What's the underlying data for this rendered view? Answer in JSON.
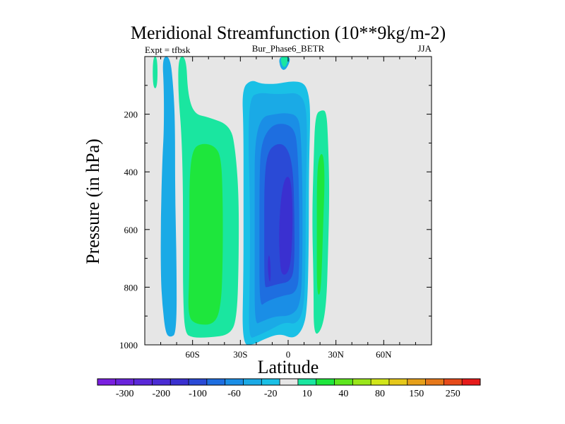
{
  "chart_data": {
    "type": "heatmap",
    "title": "Meridional Streamfunction (10**9kg/m-2)",
    "subtitle_left": "Expt = tfbsk",
    "subtitle_center": "Bur_Phase6_BETR",
    "subtitle_right": "JJA",
    "xlabel": "Latitude",
    "ylabel": "Pressure (in hPa)",
    "xlim": [
      -90,
      90
    ],
    "ylim": [
      1000,
      0
    ],
    "x_ticks": [
      {
        "value": -60,
        "label": "60S"
      },
      {
        "value": -30,
        "label": "30S"
      },
      {
        "value": 0,
        "label": "0"
      },
      {
        "value": 30,
        "label": "30N"
      },
      {
        "value": 60,
        "label": "60N"
      }
    ],
    "y_ticks": [
      {
        "value": 200,
        "label": "200"
      },
      {
        "value": 400,
        "label": "400"
      },
      {
        "value": 600,
        "label": "600"
      },
      {
        "value": 800,
        "label": "800"
      },
      {
        "value": 1000,
        "label": "1000"
      }
    ],
    "background_color": "#e6e6e6",
    "colorbar": {
      "colors": [
        "#7a1fe0",
        "#6a24dc",
        "#5a28d8",
        "#4a2cd4",
        "#3a30d0",
        "#2a4ad6",
        "#1e6ee0",
        "#1a8ee6",
        "#1aaae6",
        "#1ac0e6",
        "#e6e6e6",
        "#1ae6a0",
        "#1ee63c",
        "#5ee61e",
        "#9ae61a",
        "#d2e61a",
        "#e6c81a",
        "#e6a01a",
        "#e6781a",
        "#e64a1a",
        "#e61a1a"
      ],
      "label_positions": [
        1,
        3,
        5,
        7,
        9,
        11,
        13,
        15,
        17,
        19
      ],
      "labels": [
        "-300",
        "-200",
        "-100",
        "-60",
        "-20",
        "10",
        "40",
        "80",
        "150",
        "250"
      ]
    },
    "contours": [
      {
        "name": "sh-band-outer",
        "color": "#1aaae6",
        "points": [
          [
            -77,
            960
          ],
          [
            -79,
            860
          ],
          [
            -80,
            760
          ],
          [
            -80,
            560
          ],
          [
            -79,
            360
          ],
          [
            -78,
            260
          ],
          [
            -78,
            110
          ],
          [
            -79,
            0
          ],
          [
            -74,
            0
          ],
          [
            -72,
            110
          ],
          [
            -71,
            230
          ],
          [
            -71,
            480
          ],
          [
            -70,
            720
          ],
          [
            -70,
            960
          ],
          [
            -74,
            975
          ]
        ]
      },
      {
        "name": "sh-band-green",
        "color": "#1ae6a0",
        "points": [
          [
            -65,
            960
          ],
          [
            -66,
            820
          ],
          [
            -66,
            650
          ],
          [
            -66,
            450
          ],
          [
            -67,
            260
          ],
          [
            -69,
            130
          ],
          [
            -69,
            0
          ],
          [
            -64,
            0
          ],
          [
            -63,
            130
          ],
          [
            -59,
            200
          ],
          [
            -50,
            210
          ],
          [
            -36,
            240
          ],
          [
            -33,
            330
          ],
          [
            -31,
            480
          ],
          [
            -31,
            700
          ],
          [
            -32,
            900
          ],
          [
            -36,
            965
          ],
          [
            -50,
            975
          ],
          [
            -60,
            975
          ]
        ]
      },
      {
        "name": "sh-band-left-sliver",
        "color": "#1ae6a0",
        "points": [
          [
            -85,
            110
          ],
          [
            -85,
            0
          ],
          [
            -82,
            0
          ],
          [
            -82,
            110
          ]
        ]
      },
      {
        "name": "sh-band-core",
        "color": "#1ee63c",
        "points": [
          [
            -63,
            900
          ],
          [
            -62,
            760
          ],
          [
            -62,
            580
          ],
          [
            -62,
            420
          ],
          [
            -60,
            320
          ],
          [
            -54,
            300
          ],
          [
            -46,
            310
          ],
          [
            -42,
            350
          ],
          [
            -41,
            500
          ],
          [
            -41,
            700
          ],
          [
            -42,
            860
          ],
          [
            -46,
            930
          ],
          [
            -58,
            930
          ]
        ]
      },
      {
        "name": "cell-l1",
        "color": "#1ac0e6",
        "points": [
          [
            -29,
            1000
          ],
          [
            -28,
            750
          ],
          [
            -28,
            480
          ],
          [
            -28,
            250
          ],
          [
            -29,
            110
          ],
          [
            -23,
            80
          ],
          [
            -17,
            95
          ],
          [
            -7,
            95
          ],
          [
            2,
            85
          ],
          [
            10,
            90
          ],
          [
            13,
            130
          ],
          [
            14,
            200
          ],
          [
            13,
            400
          ],
          [
            13,
            650
          ],
          [
            12,
            880
          ],
          [
            9,
            950
          ],
          [
            3,
            980
          ],
          [
            -5,
            960
          ],
          [
            -15,
            980
          ],
          [
            -22,
            1000
          ]
        ]
      },
      {
        "name": "cell-l2",
        "color": "#1aaae6",
        "points": [
          [
            -25,
            980
          ],
          [
            -24,
            760
          ],
          [
            -24,
            500
          ],
          [
            -25,
            280
          ],
          [
            -24,
            140
          ],
          [
            -18,
            125
          ],
          [
            -10,
            130
          ],
          [
            -2,
            130
          ],
          [
            6,
            125
          ],
          [
            11,
            160
          ],
          [
            12,
            260
          ],
          [
            11,
            500
          ],
          [
            11,
            700
          ],
          [
            10,
            880
          ],
          [
            5,
            930
          ],
          [
            -2,
            920
          ],
          [
            -12,
            950
          ],
          [
            -20,
            970
          ]
        ]
      },
      {
        "name": "cell-l3",
        "color": "#1a8ee6",
        "points": [
          [
            -21,
            930
          ],
          [
            -21,
            720
          ],
          [
            -21,
            480
          ],
          [
            -21,
            300
          ],
          [
            -17,
            210
          ],
          [
            -9,
            200
          ],
          [
            -1,
            195
          ],
          [
            6,
            205
          ],
          [
            8,
            260
          ],
          [
            9,
            450
          ],
          [
            9,
            700
          ],
          [
            8,
            860
          ],
          [
            2,
            900
          ],
          [
            -8,
            900
          ],
          [
            -17,
            920
          ]
        ]
      },
      {
        "name": "cell-l4",
        "color": "#1e6ee0",
        "points": [
          [
            -18,
            870
          ],
          [
            -18,
            640
          ],
          [
            -18,
            420
          ],
          [
            -17,
            300
          ],
          [
            -11,
            240
          ],
          [
            -3,
            230
          ],
          [
            4,
            250
          ],
          [
            6,
            320
          ],
          [
            7,
            520
          ],
          [
            7,
            720
          ],
          [
            6,
            820
          ],
          [
            -4,
            830
          ],
          [
            -14,
            850
          ]
        ]
      },
      {
        "name": "cell-l5",
        "color": "#2a4ad6",
        "points": [
          [
            -15,
            800
          ],
          [
            -15,
            600
          ],
          [
            -15,
            430
          ],
          [
            -13,
            330
          ],
          [
            -7,
            300
          ],
          [
            -1,
            310
          ],
          [
            3,
            380
          ],
          [
            4,
            550
          ],
          [
            4,
            720
          ],
          [
            2,
            780
          ],
          [
            -7,
            790
          ],
          [
            -13,
            800
          ]
        ]
      },
      {
        "name": "cell-l6",
        "color": "#3a30d0",
        "points": [
          [
            -5,
            740
          ],
          [
            -6,
            600
          ],
          [
            -4,
            460
          ],
          [
            -1,
            410
          ],
          [
            2,
            430
          ],
          [
            3,
            560
          ],
          [
            2,
            700
          ],
          [
            0,
            750
          ],
          [
            -3,
            760
          ]
        ]
      },
      {
        "name": "cell-l6b",
        "color": "#3a30d0",
        "points": [
          [
            -12,
            780
          ],
          [
            -13,
            720
          ],
          [
            -12,
            680
          ],
          [
            -11,
            720
          ],
          [
            -11,
            780
          ]
        ]
      },
      {
        "name": "top-blob-outer",
        "color": "#1aaae6",
        "points": [
          [
            -6,
            0
          ],
          [
            -5,
            40
          ],
          [
            -2,
            50
          ],
          [
            1,
            20
          ],
          [
            1,
            0
          ]
        ]
      },
      {
        "name": "top-blob-green",
        "color": "#1ae6a0",
        "points": [
          [
            -5,
            0
          ],
          [
            -4,
            30
          ],
          [
            -2,
            40
          ],
          [
            0,
            15
          ],
          [
            0,
            0
          ]
        ]
      },
      {
        "name": "nh-band-green",
        "color": "#1ae6a0",
        "points": [
          [
            16,
            970
          ],
          [
            16,
            800
          ],
          [
            15,
            560
          ],
          [
            16,
            360
          ],
          [
            17,
            200
          ],
          [
            21,
            185
          ],
          [
            24,
            190
          ],
          [
            25,
            280
          ],
          [
            26,
            470
          ],
          [
            25,
            690
          ],
          [
            24,
            860
          ],
          [
            21,
            950
          ]
        ]
      },
      {
        "name": "nh-band-core",
        "color": "#1ee63c",
        "points": [
          [
            18,
            820
          ],
          [
            18,
            620
          ],
          [
            18,
            440
          ],
          [
            19,
            350
          ],
          [
            22,
            330
          ],
          [
            23,
            420
          ],
          [
            22,
            580
          ],
          [
            21,
            760
          ],
          [
            20,
            830
          ]
        ]
      }
    ]
  }
}
